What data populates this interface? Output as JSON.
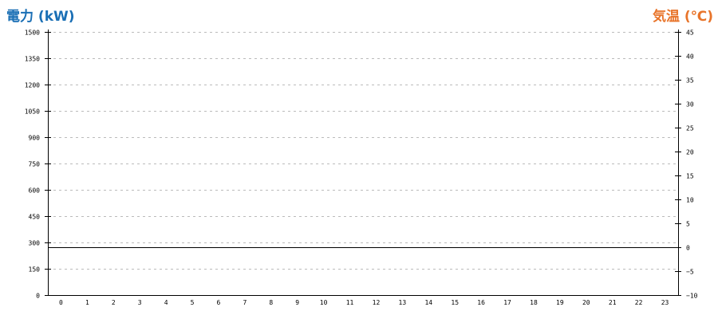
{
  "chart_data": {
    "type": "line",
    "title_left": "電力 (kW)",
    "title_right": "気温 (℃)",
    "categories": [
      "0",
      "1",
      "2",
      "3",
      "4",
      "5",
      "6",
      "7",
      "8",
      "9",
      "10",
      "11",
      "12",
      "13",
      "14",
      "15",
      "16",
      "17",
      "18",
      "19",
      "20",
      "21",
      "22",
      "23"
    ],
    "y_left": {
      "label": "電力 (kW)",
      "range": [
        0,
        1500
      ],
      "ticks": [
        "0",
        "150",
        "300",
        "450",
        "600",
        "750",
        "900",
        "1050",
        "1200",
        "1350",
        "1500"
      ]
    },
    "y_right": {
      "label": "気温 (℃)",
      "range": [
        -10,
        45
      ],
      "ticks": [
        "-10",
        "-5",
        "0",
        "5",
        "10",
        "15",
        "20",
        "25",
        "30",
        "35",
        "40",
        "45"
      ]
    },
    "reference_line": {
      "axis": "right",
      "value": 0
    },
    "series": [],
    "grid": true,
    "colors": {
      "left_title": "#1a6fb5",
      "right_title": "#e8742a",
      "grid": "#bbbbbb",
      "axis": "#000000"
    }
  }
}
